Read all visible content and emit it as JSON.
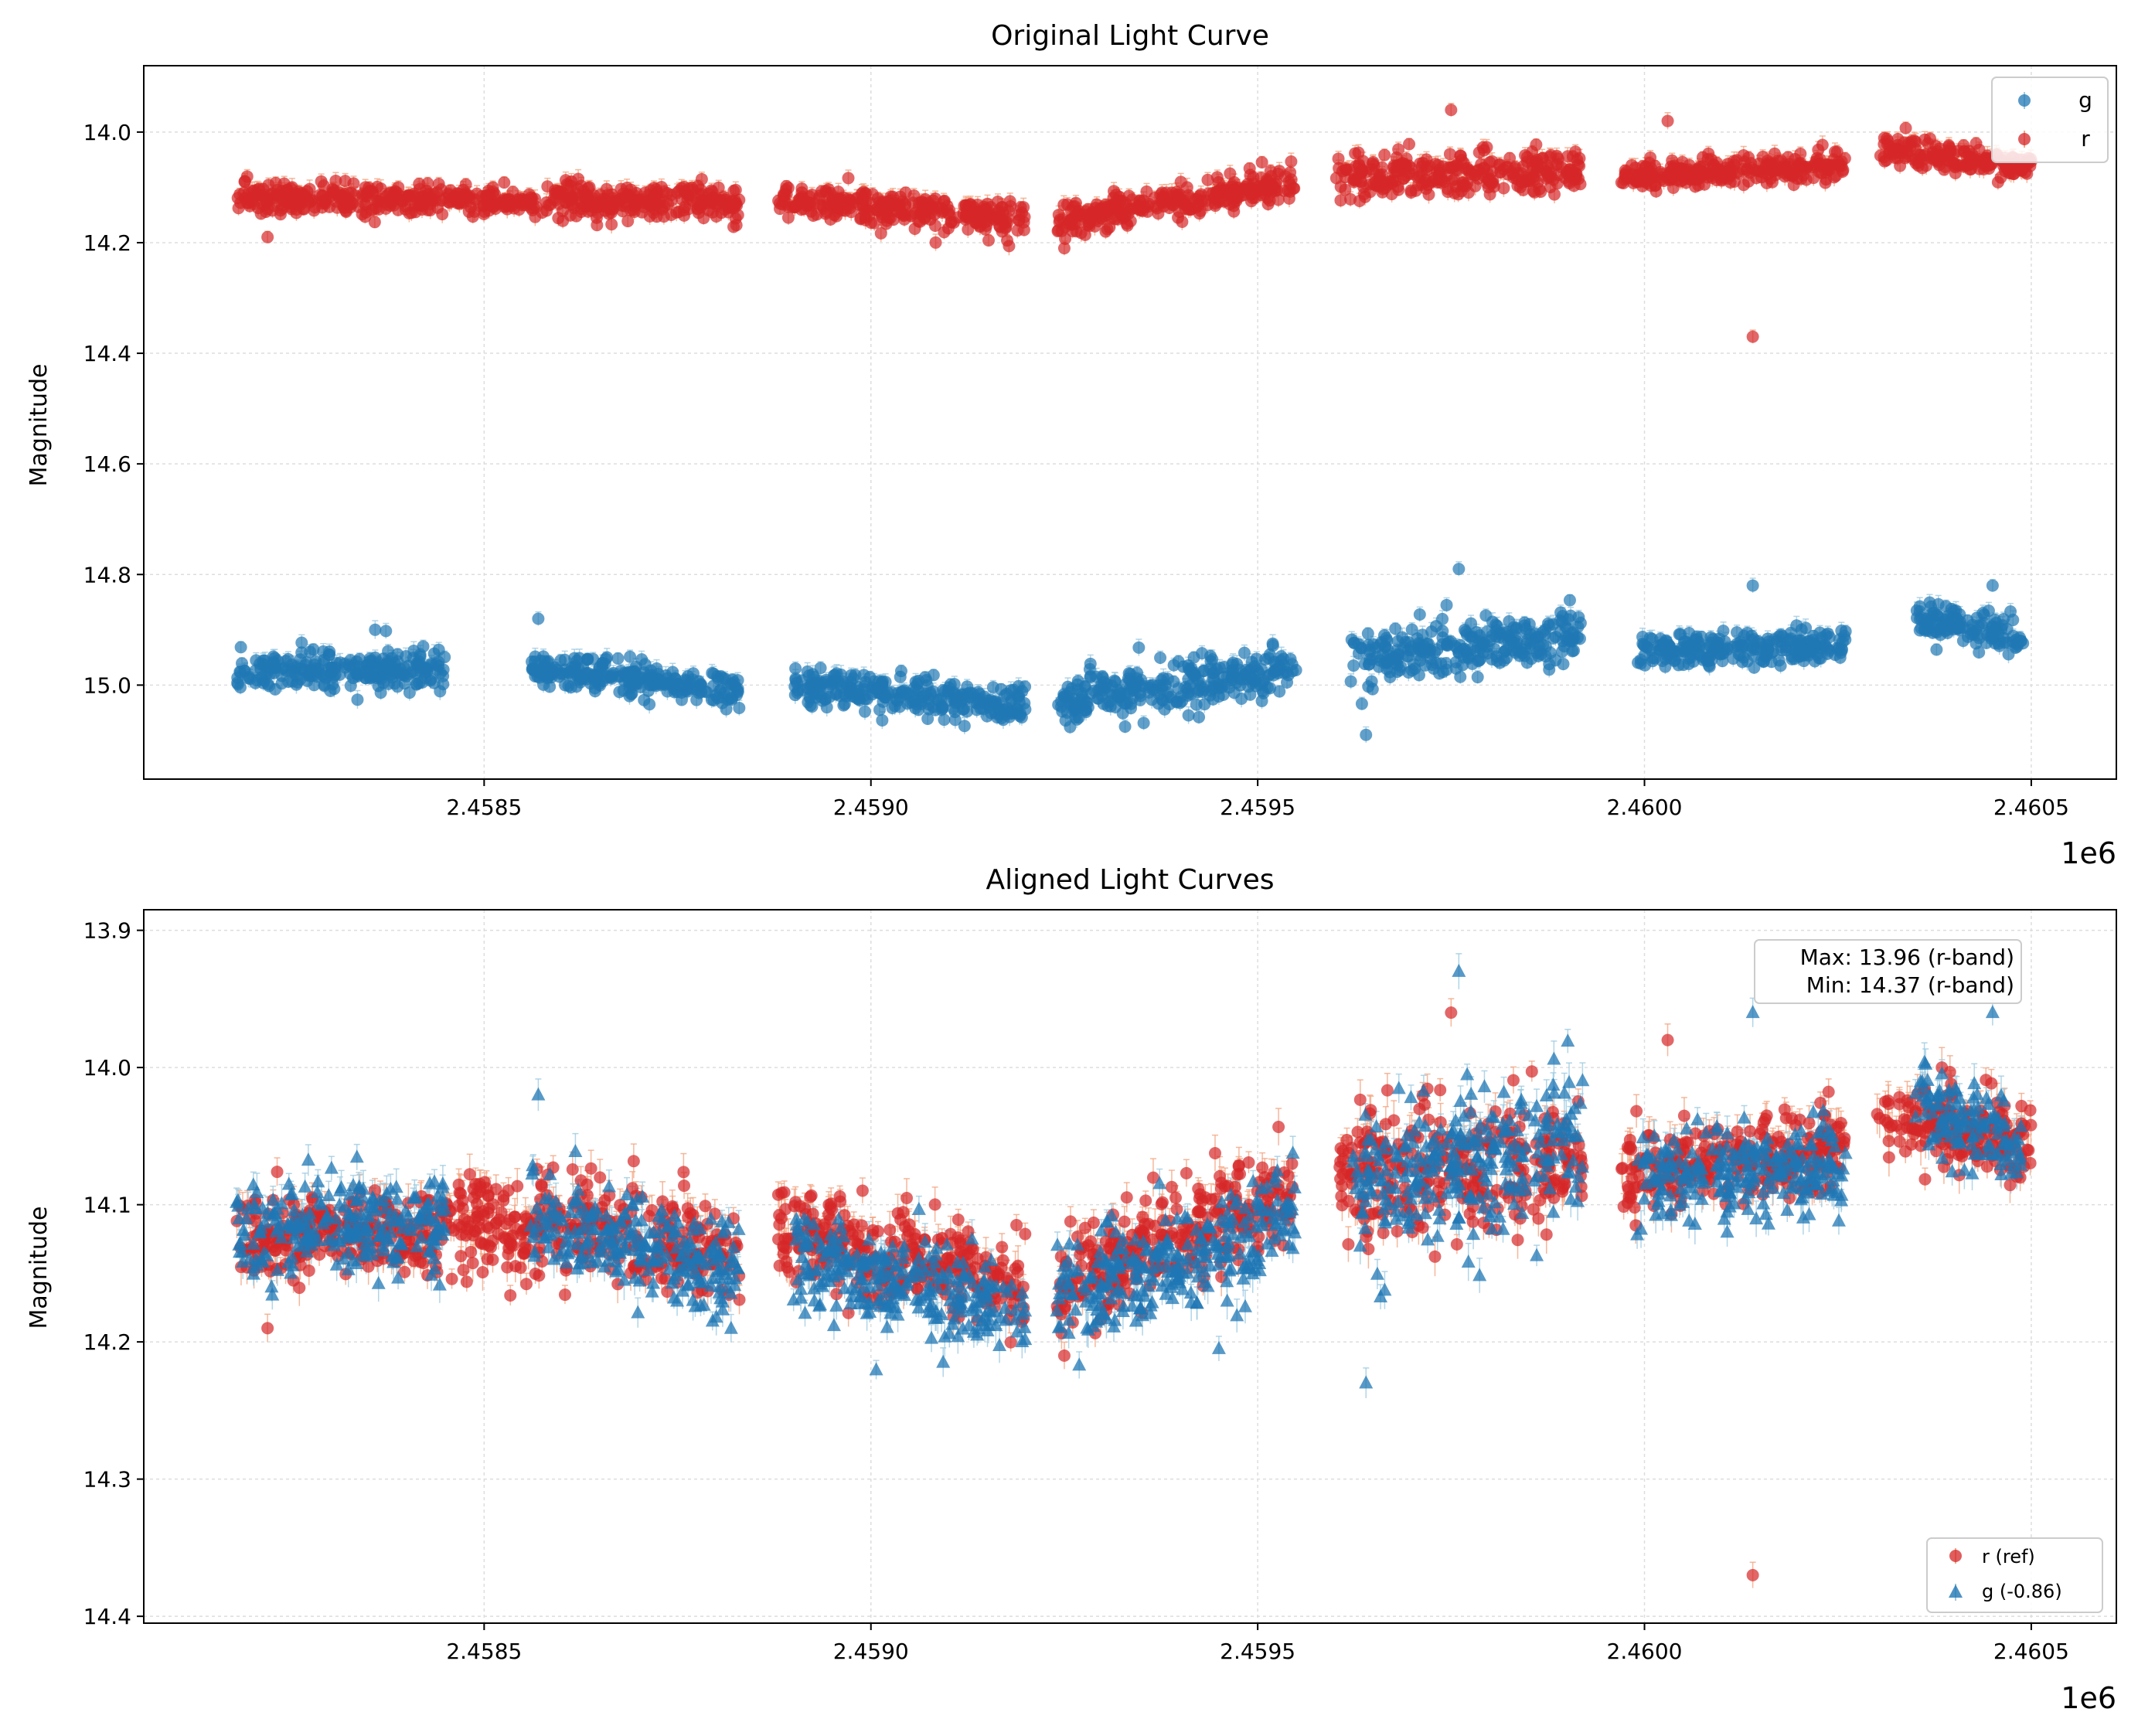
{
  "chart_data": [
    {
      "type": "scatter",
      "title": "Original Light Curve",
      "xlabel": "",
      "ylabel": "Magnitude",
      "x_offset_label": "1e6",
      "xlim": [
        2.45806,
        2.46061
      ],
      "ylim": [
        15.17,
        13.88
      ],
      "y_inverted": true,
      "grid": true,
      "x_ticks": [
        "2.4585",
        "2.4590",
        "2.4595",
        "2.4600",
        "2.4605"
      ],
      "y_ticks": [
        "14.0",
        "14.2",
        "14.4",
        "14.6",
        "14.8",
        "15.0"
      ],
      "legend_position": "upper right",
      "series": [
        {
          "name": "g",
          "marker": "circle",
          "color": "#1f77b4",
          "errorbar_color": "#9ecae1",
          "seasons": [
            {
              "x_start": 2.45818,
              "x_end": 2.45845,
              "mag_start": 14.98,
              "mag_end": 14.97,
              "scatter": 0.035
            },
            {
              "x_start": 2.45856,
              "x_end": 2.45883,
              "mag_start": 14.97,
              "mag_end": 15.01,
              "scatter": 0.03
            },
            {
              "x_start": 2.4589,
              "x_end": 2.4592,
              "mag_start": 15.0,
              "mag_end": 15.04,
              "scatter": 0.035
            },
            {
              "x_start": 2.45924,
              "x_end": 2.45955,
              "mag_start": 15.03,
              "mag_end": 14.97,
              "scatter": 0.04
            },
            {
              "x_start": 2.45962,
              "x_end": 2.45992,
              "mag_start": 14.95,
              "mag_end": 14.91,
              "scatter": 0.05
            },
            {
              "x_start": 2.45999,
              "x_end": 2.46026,
              "mag_start": 14.94,
              "mag_end": 14.93,
              "scatter": 0.03
            },
            {
              "x_start": 2.46035,
              "x_end": 2.46049,
              "mag_start": 14.88,
              "mag_end": 14.92,
              "scatter": 0.03
            }
          ],
          "outliers": [
            {
              "x": 2.45857,
              "y": 14.88
            },
            {
              "x": 2.45964,
              "y": 15.09
            },
            {
              "x": 2.45976,
              "y": 14.79
            },
            {
              "x": 2.46014,
              "y": 14.82
            },
            {
              "x": 2.46045,
              "y": 14.82
            }
          ]
        },
        {
          "name": "r",
          "marker": "circle",
          "color": "#d62728",
          "errorbar_color": "#f4a582",
          "seasons": [
            {
              "x_start": 2.45818,
              "x_end": 2.45845,
              "mag_start": 14.12,
              "mag_end": 14.12,
              "scatter": 0.03
            },
            {
              "x_start": 2.45845,
              "x_end": 2.45883,
              "mag_start": 14.12,
              "mag_end": 14.13,
              "scatter": 0.03
            },
            {
              "x_start": 2.45888,
              "x_end": 2.4592,
              "mag_start": 14.12,
              "mag_end": 14.16,
              "scatter": 0.03
            },
            {
              "x_start": 2.45924,
              "x_end": 2.45955,
              "mag_start": 14.16,
              "mag_end": 14.09,
              "scatter": 0.03
            },
            {
              "x_start": 2.4596,
              "x_end": 2.45992,
              "mag_start": 14.08,
              "mag_end": 14.07,
              "scatter": 0.04
            },
            {
              "x_start": 2.45997,
              "x_end": 2.46026,
              "mag_start": 14.08,
              "mag_end": 14.06,
              "scatter": 0.025
            },
            {
              "x_start": 2.4603,
              "x_end": 2.4605,
              "mag_start": 14.03,
              "mag_end": 14.06,
              "scatter": 0.025
            }
          ],
          "outliers": [
            {
              "x": 2.45975,
              "y": 13.96
            },
            {
              "x": 2.46014,
              "y": 14.37
            },
            {
              "x": 2.46003,
              "y": 13.98
            },
            {
              "x": 2.45822,
              "y": 14.19
            },
            {
              "x": 2.45925,
              "y": 14.21
            }
          ]
        }
      ]
    },
    {
      "type": "scatter",
      "title": "Aligned Light Curves",
      "xlabel": "",
      "ylabel": "Magnitude",
      "x_offset_label": "1e6",
      "xlim": [
        2.45806,
        2.46061
      ],
      "ylim": [
        14.405,
        13.885
      ],
      "y_inverted": true,
      "grid": true,
      "x_ticks": [
        "2.4585",
        "2.4590",
        "2.4595",
        "2.4600",
        "2.4605"
      ],
      "y_ticks": [
        "13.9",
        "14.0",
        "14.1",
        "14.2",
        "14.3",
        "14.4"
      ],
      "legend_position": "lower right",
      "annotation": {
        "line1": "Max: 13.96 (r-band)",
        "line2": "Min: 14.37 (r-band)"
      },
      "series": [
        {
          "name": "r (ref)",
          "marker": "circle",
          "color": "#d62728",
          "errorbar_color": "#f4a582",
          "seasons": [
            {
              "x_start": 2.45818,
              "x_end": 2.45845,
              "mag_start": 14.12,
              "mag_end": 14.12,
              "scatter": 0.03
            },
            {
              "x_start": 2.45845,
              "x_end": 2.45883,
              "mag_start": 14.11,
              "mag_end": 14.13,
              "scatter": 0.035
            },
            {
              "x_start": 2.45888,
              "x_end": 2.4592,
              "mag_start": 14.12,
              "mag_end": 14.16,
              "scatter": 0.035
            },
            {
              "x_start": 2.45924,
              "x_end": 2.45955,
              "mag_start": 14.16,
              "mag_end": 14.09,
              "scatter": 0.035
            },
            {
              "x_start": 2.4596,
              "x_end": 2.45992,
              "mag_start": 14.08,
              "mag_end": 14.07,
              "scatter": 0.045
            },
            {
              "x_start": 2.45997,
              "x_end": 2.46026,
              "mag_start": 14.08,
              "mag_end": 14.06,
              "scatter": 0.03
            },
            {
              "x_start": 2.4603,
              "x_end": 2.4605,
              "mag_start": 14.03,
              "mag_end": 14.06,
              "scatter": 0.03
            }
          ],
          "outliers": [
            {
              "x": 2.45975,
              "y": 13.96
            },
            {
              "x": 2.46014,
              "y": 14.37
            },
            {
              "x": 2.46003,
              "y": 13.98
            },
            {
              "x": 2.45822,
              "y": 14.19
            },
            {
              "x": 2.45925,
              "y": 14.21
            }
          ]
        },
        {
          "name": "g (-0.86)",
          "marker": "triangle",
          "color": "#1f77b4",
          "errorbar_color": "#9ecae1",
          "seasons": [
            {
              "x_start": 2.45818,
              "x_end": 2.45845,
              "mag_start": 14.12,
              "mag_end": 14.11,
              "scatter": 0.035
            },
            {
              "x_start": 2.45856,
              "x_end": 2.45883,
              "mag_start": 14.11,
              "mag_end": 14.15,
              "scatter": 0.035
            },
            {
              "x_start": 2.4589,
              "x_end": 2.4592,
              "mag_start": 14.14,
              "mag_end": 14.18,
              "scatter": 0.035
            },
            {
              "x_start": 2.45924,
              "x_end": 2.45955,
              "mag_start": 14.17,
              "mag_end": 14.11,
              "scatter": 0.04
            },
            {
              "x_start": 2.45962,
              "x_end": 2.45992,
              "mag_start": 14.09,
              "mag_end": 14.05,
              "scatter": 0.05
            },
            {
              "x_start": 2.45999,
              "x_end": 2.46026,
              "mag_start": 14.08,
              "mag_end": 14.07,
              "scatter": 0.03
            },
            {
              "x_start": 2.46035,
              "x_end": 2.46049,
              "mag_start": 14.02,
              "mag_end": 14.06,
              "scatter": 0.03
            }
          ],
          "outliers": [
            {
              "x": 2.45857,
              "y": 14.02
            },
            {
              "x": 2.45964,
              "y": 14.23
            },
            {
              "x": 2.45976,
              "y": 13.93
            },
            {
              "x": 2.46014,
              "y": 13.96
            },
            {
              "x": 2.46045,
              "y": 13.96
            }
          ]
        }
      ]
    }
  ]
}
